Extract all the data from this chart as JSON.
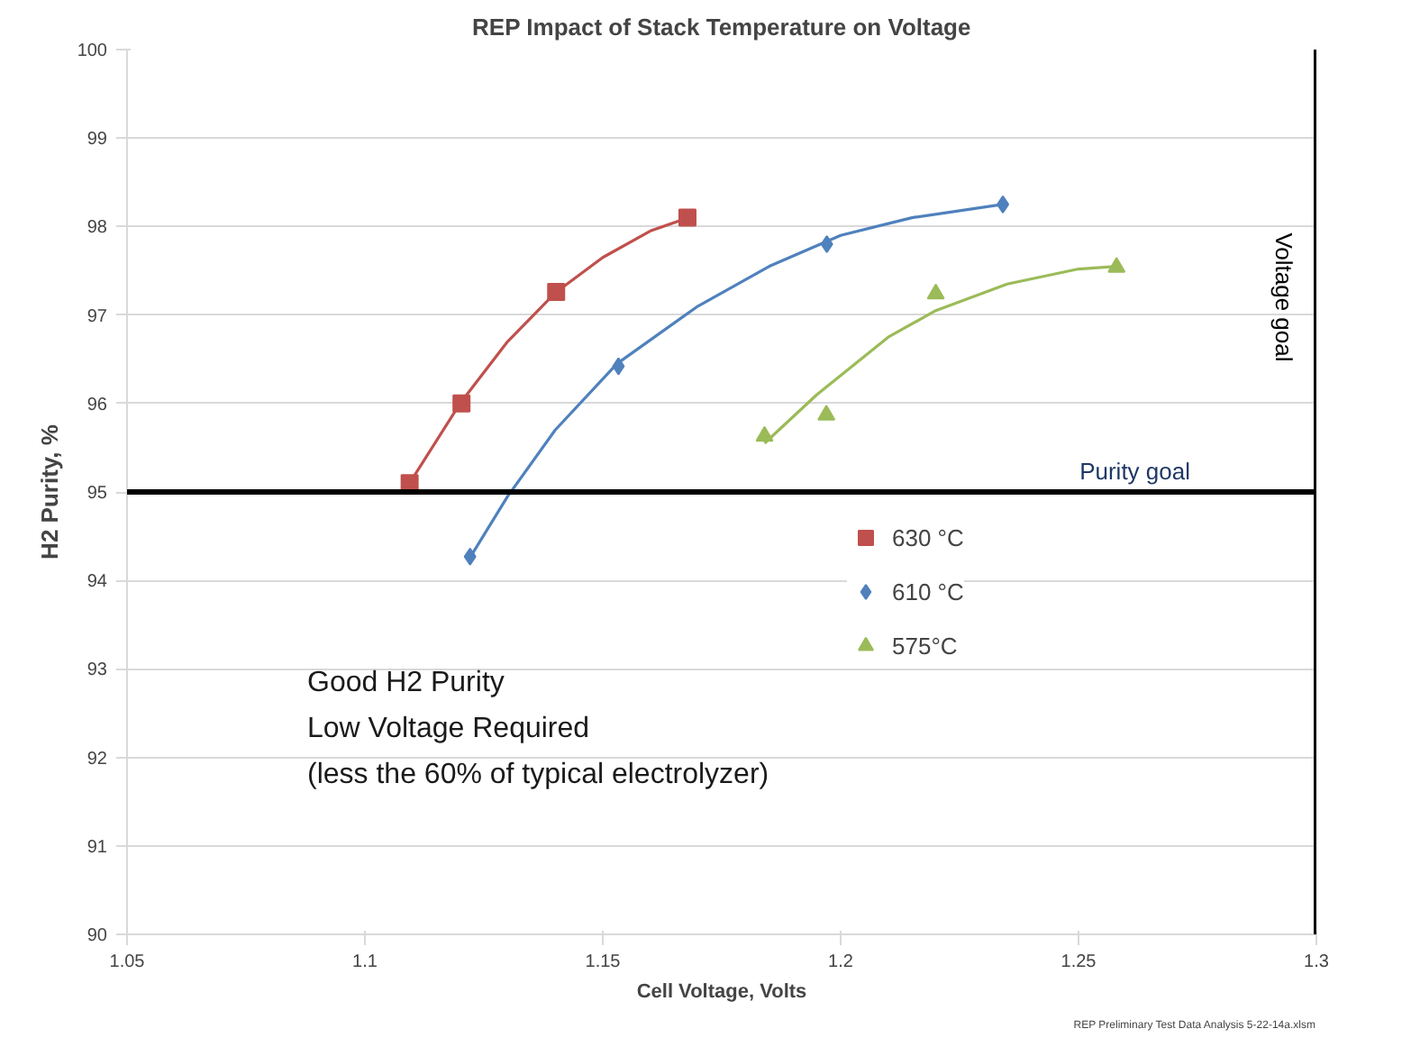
{
  "chart_data": {
    "type": "scatter",
    "title": "REP Impact of Stack Temperature on Voltage",
    "xlabel": "Cell Voltage, Volts",
    "ylabel": "H2 Purity, %",
    "xlim": [
      1.05,
      1.3
    ],
    "xticks": [
      1.05,
      1.1,
      1.15,
      1.2,
      1.25,
      1.3
    ],
    "ylim": [
      90,
      100
    ],
    "yticks": [
      90,
      91,
      92,
      93,
      94,
      95,
      96,
      97,
      98,
      99,
      100
    ],
    "grid": "y",
    "legend": "center",
    "series": [
      {
        "name": "630 °C",
        "color": "#c0504d",
        "marker": "square",
        "x": [
          1.1094,
          1.1203,
          1.1402,
          1.1678
        ],
        "values": [
          95.1,
          96.0,
          97.26,
          98.1
        ]
      },
      {
        "name": "610 °C",
        "color": "#4f81bd",
        "marker": "diamond",
        "x": [
          1.1221,
          1.1533,
          1.1971,
          1.2341
        ],
        "values": [
          94.27,
          96.42,
          97.8,
          98.25
        ]
      },
      {
        "name": "575°C",
        "color": "#9bbb59",
        "marker": "triangle",
        "x": [
          1.184,
          1.197,
          1.22,
          1.258
        ],
        "values": [
          95.63,
          95.87,
          97.24,
          97.54
        ]
      },
      {
        "type": "line",
        "color": "#c0504d",
        "x": [
          1.1094,
          1.12,
          1.13,
          1.14,
          1.15,
          1.16,
          1.168
        ],
        "values": [
          95.1,
          96.0,
          96.7,
          97.25,
          97.65,
          97.95,
          98.1
        ]
      },
      {
        "type": "line",
        "color": "#4f81bd",
        "x": [
          1.122,
          1.13,
          1.14,
          1.153,
          1.17,
          1.185,
          1.2,
          1.215,
          1.234
        ],
        "values": [
          94.25,
          94.95,
          95.7,
          96.45,
          97.1,
          97.55,
          97.9,
          98.1,
          98.25
        ]
      },
      {
        "type": "line",
        "color": "#9bbb59",
        "x": [
          1.184,
          1.195,
          1.21,
          1.22,
          1.235,
          1.25,
          1.258
        ],
        "values": [
          95.55,
          96.1,
          96.75,
          97.05,
          97.35,
          97.52,
          97.55
        ]
      }
    ],
    "ref_lines": [
      {
        "axis": "y",
        "value": 95,
        "label": "Purity goal",
        "color": "#000000"
      },
      {
        "axis": "x",
        "value": 1.3,
        "label": "Voltage goal",
        "color": "#000000"
      }
    ],
    "annotations": [
      "Good H2 Purity\nLow Voltage Required\n(less the 60% of typical electrolyzer)",
      "REP Preliminary Test Data Analysis 5-22-14a.xlsm"
    ]
  }
}
